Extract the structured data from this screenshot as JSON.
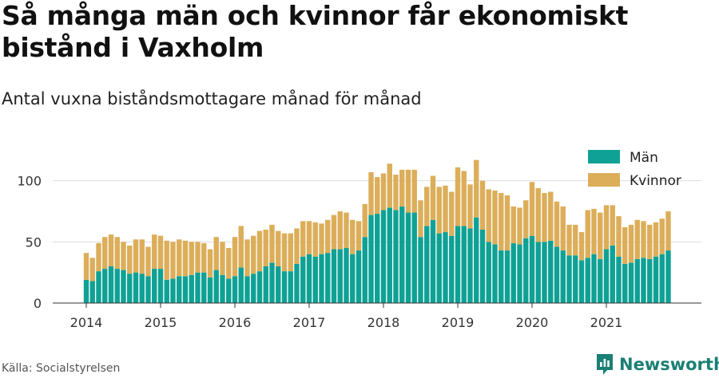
{
  "title": "Så många män och kvinnor får ekonomiskt bistånd i Vaxholm",
  "subtitle": "Antal vuxna biståndsmottagare månad för månad",
  "source": "Källa: Socialstyrelsen",
  "brand": {
    "name": "Newsworthy",
    "icon": "newsworthy-logo-icon"
  },
  "colors": {
    "men": "#0fa195",
    "women": "#dcae5a",
    "grid": "#dddddd",
    "axis": "#333333"
  },
  "chart_data": {
    "type": "bar",
    "stacked": true,
    "x": [
      "2014-01",
      "2014-02",
      "2014-03",
      "2014-04",
      "2014-05",
      "2014-06",
      "2014-07",
      "2014-08",
      "2014-09",
      "2014-10",
      "2014-11",
      "2014-12",
      "2015-01",
      "2015-02",
      "2015-03",
      "2015-04",
      "2015-05",
      "2015-06",
      "2015-07",
      "2015-08",
      "2015-09",
      "2015-10",
      "2015-11",
      "2015-12",
      "2016-01",
      "2016-02",
      "2016-03",
      "2016-04",
      "2016-05",
      "2016-06",
      "2016-07",
      "2016-08",
      "2016-09",
      "2016-10",
      "2016-11",
      "2016-12",
      "2017-01",
      "2017-02",
      "2017-03",
      "2017-04",
      "2017-05",
      "2017-06",
      "2017-07",
      "2017-08",
      "2017-09",
      "2017-10",
      "2017-11",
      "2017-12",
      "2018-01",
      "2018-02",
      "2018-03",
      "2018-04",
      "2018-05",
      "2018-06",
      "2018-07",
      "2018-08",
      "2018-09",
      "2018-10",
      "2018-11",
      "2018-12",
      "2019-01",
      "2019-02",
      "2019-03",
      "2019-04",
      "2019-05",
      "2019-06",
      "2019-07",
      "2019-08",
      "2019-09",
      "2019-10",
      "2019-11",
      "2019-12",
      "2020-01",
      "2020-02",
      "2020-03",
      "2020-04",
      "2020-05",
      "2020-06",
      "2020-07",
      "2020-08",
      "2020-09",
      "2020-10",
      "2020-11",
      "2020-12",
      "2021-01",
      "2021-02",
      "2021-03",
      "2021-04",
      "2021-05",
      "2021-06",
      "2021-07",
      "2021-08",
      "2021-09",
      "2021-10",
      "2021-11"
    ],
    "series": [
      {
        "name": "Män",
        "values": [
          19,
          18,
          26,
          28,
          30,
          28,
          27,
          24,
          25,
          24,
          22,
          28,
          28,
          19,
          20,
          22,
          22,
          23,
          25,
          25,
          21,
          27,
          23,
          20,
          22,
          29,
          22,
          24,
          26,
          30,
          33,
          30,
          26,
          26,
          32,
          38,
          40,
          38,
          40,
          41,
          44,
          44,
          45,
          40,
          43,
          54,
          72,
          73,
          76,
          78,
          76,
          79,
          74,
          74,
          54,
          63,
          68,
          57,
          58,
          55,
          63,
          63,
          61,
          70,
          60,
          50,
          48,
          43,
          43,
          49,
          48,
          53,
          55,
          50,
          50,
          51,
          46,
          43,
          39,
          39,
          35,
          37,
          40,
          36,
          44,
          47,
          38,
          32,
          33,
          36,
          37,
          36,
          38,
          40,
          43
        ]
      },
      {
        "name": "Kvinnor",
        "values": [
          22,
          19,
          23,
          26,
          26,
          26,
          23,
          23,
          27,
          28,
          24,
          28,
          27,
          32,
          30,
          30,
          29,
          27,
          25,
          24,
          23,
          27,
          27,
          25,
          32,
          34,
          30,
          31,
          33,
          30,
          31,
          29,
          31,
          31,
          29,
          29,
          27,
          28,
          25,
          27,
          28,
          31,
          29,
          28,
          24,
          27,
          35,
          30,
          30,
          36,
          29,
          30,
          35,
          35,
          30,
          32,
          36,
          38,
          38,
          36,
          48,
          45,
          36,
          47,
          40,
          43,
          44,
          47,
          45,
          30,
          30,
          31,
          44,
          44,
          40,
          40,
          37,
          36,
          25,
          25,
          23,
          39,
          37,
          38,
          36,
          33,
          33,
          30,
          31,
          32,
          30,
          28,
          28,
          29,
          32
        ]
      }
    ],
    "ylim": [
      0,
      120
    ],
    "yticks": [
      0,
      50,
      100
    ],
    "xtick_labels": [
      "2014",
      "2015",
      "2016",
      "2017",
      "2018",
      "2019",
      "2020",
      "2021"
    ],
    "legend_position": "top-right",
    "grid": true
  }
}
